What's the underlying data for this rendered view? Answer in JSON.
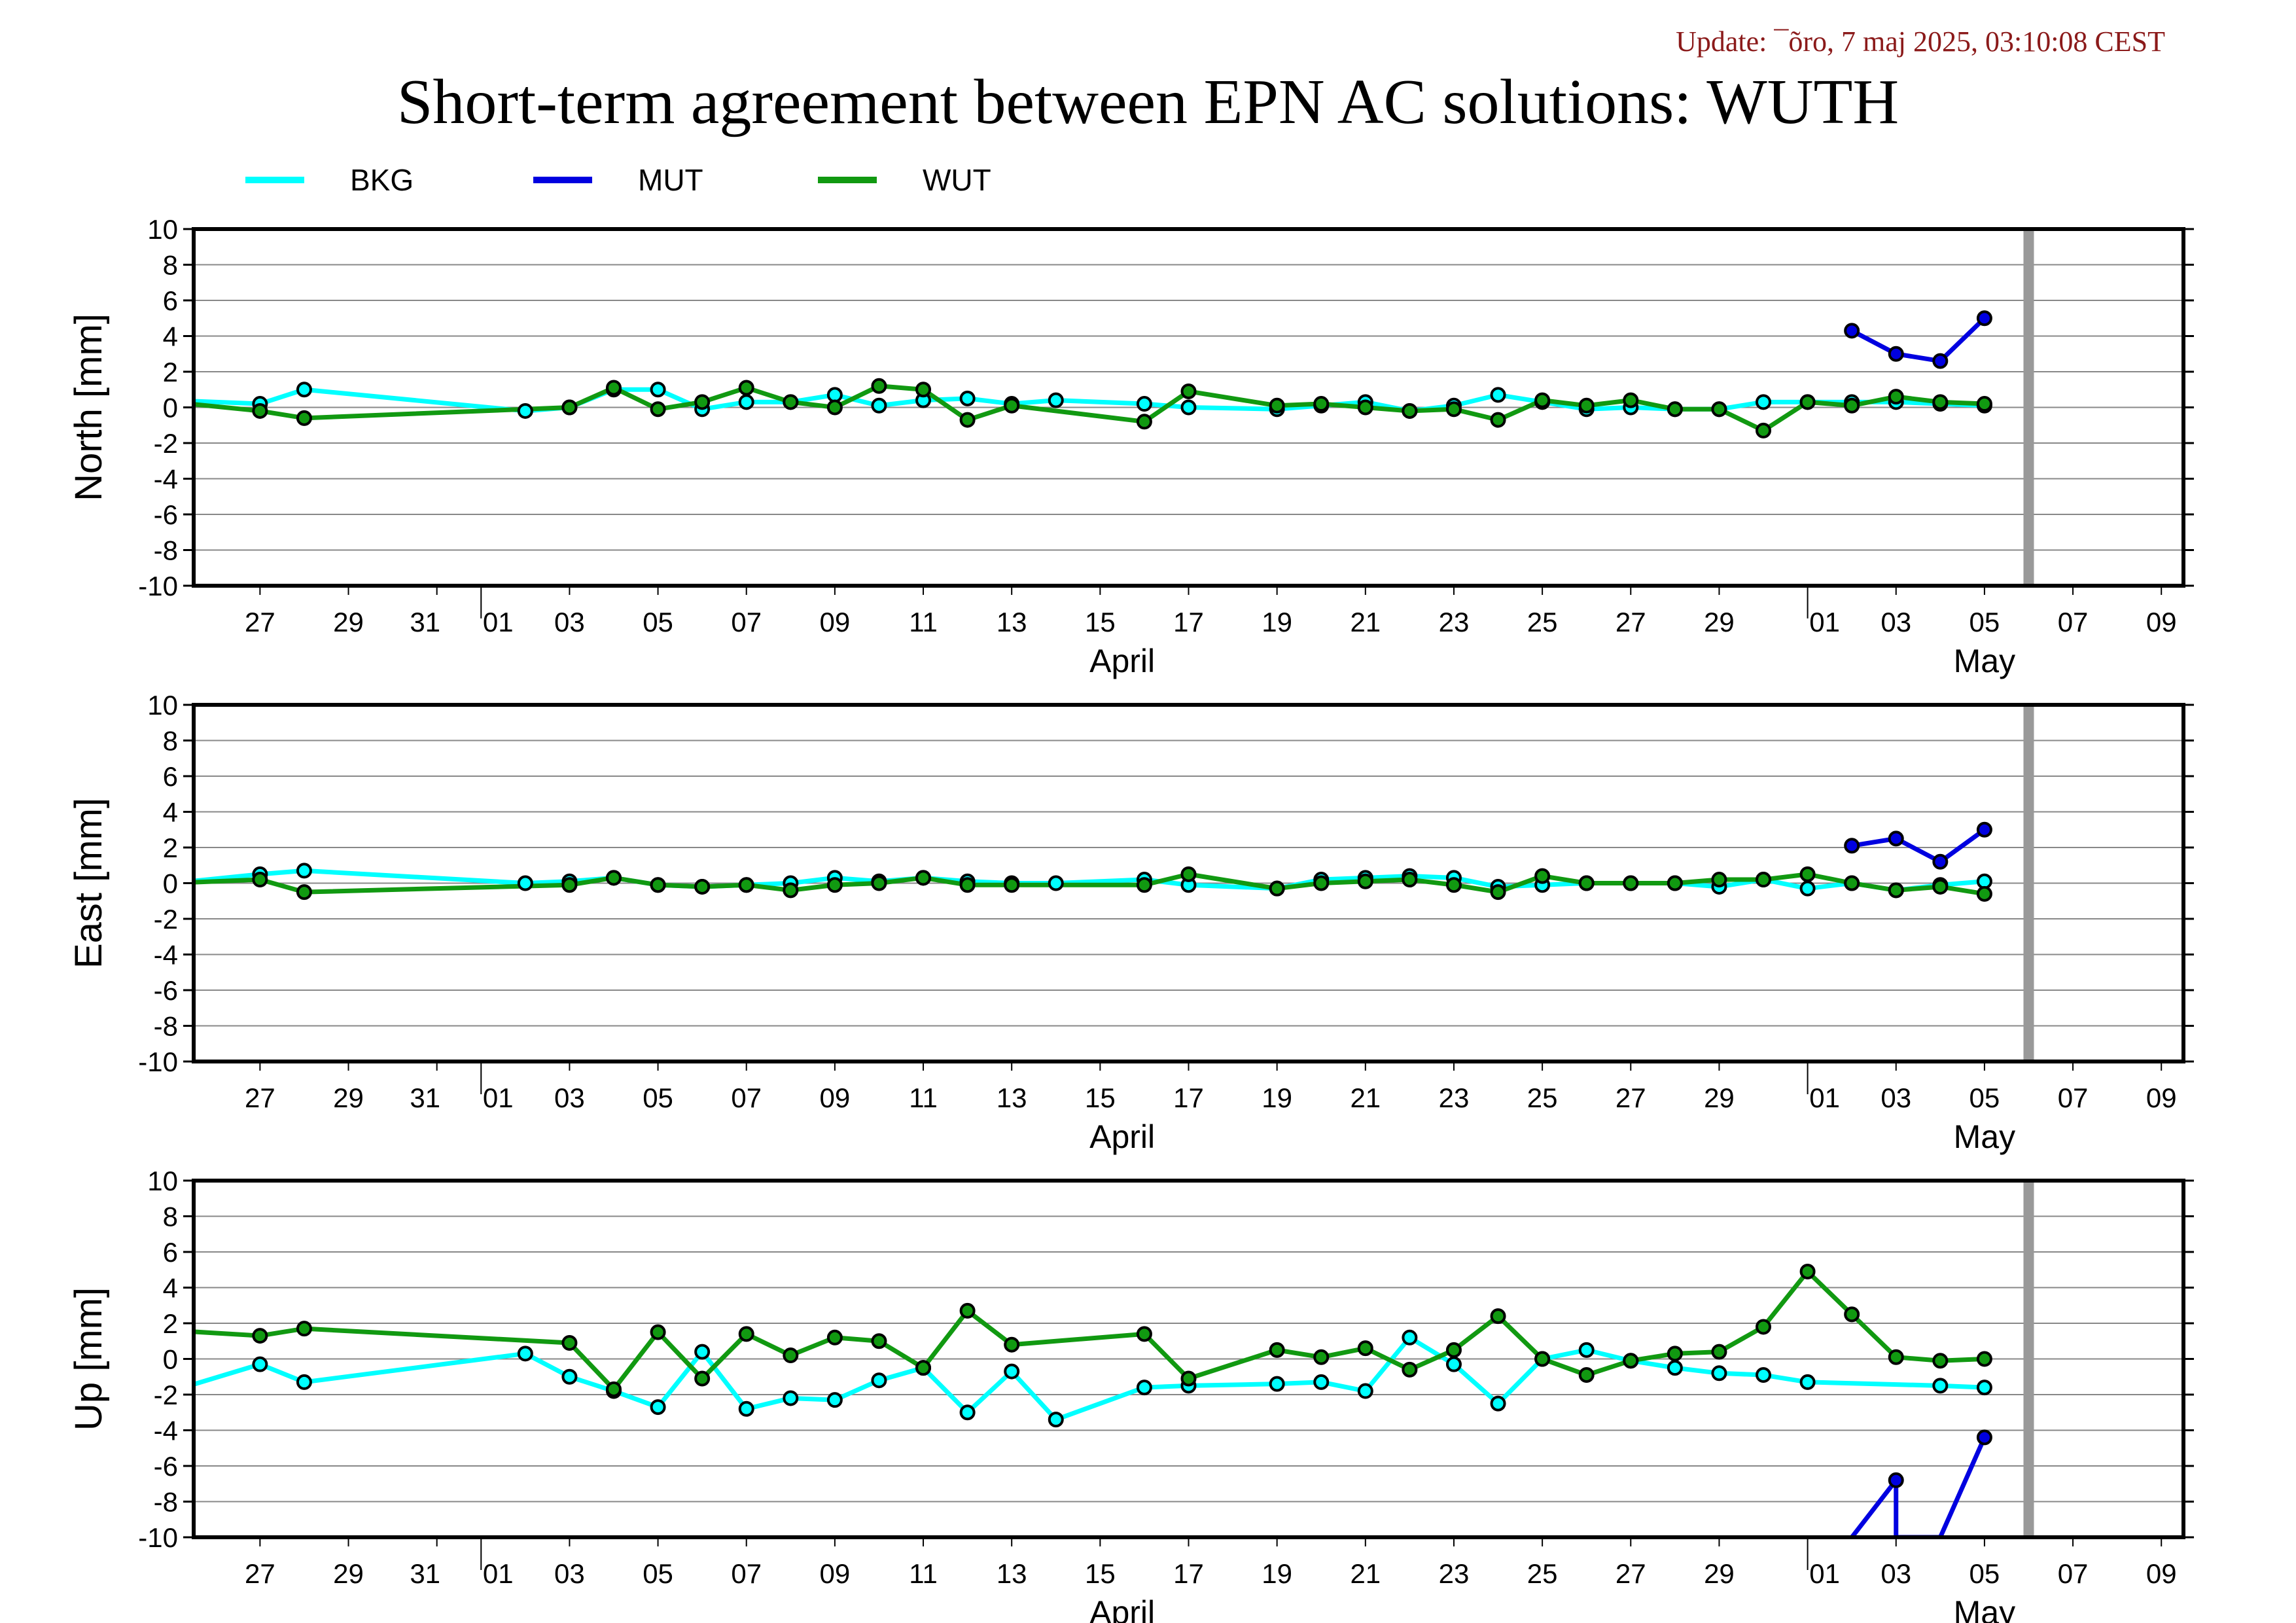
{
  "header": {
    "update": "Update: ¯õro, 7 maj 2025, 03:10:08 CEST",
    "title": "Short-term agreement between EPN AC solutions: WUTH"
  },
  "legend": [
    {
      "name": "BKG",
      "color": "#00ffff"
    },
    {
      "name": "MUT",
      "color": "#0000e0"
    },
    {
      "name": "WUT",
      "color": "#119911"
    }
  ],
  "colors": {
    "grid": "#888888",
    "marker_outline": "#000000",
    "today_line": "#999999"
  },
  "chart_data": [
    {
      "type": "line",
      "ylabel": "North [mm]",
      "ylim": [
        -10,
        10
      ],
      "yticks": [
        10,
        8,
        6,
        4,
        2,
        0,
        -2,
        -4,
        -6,
        -8,
        -10
      ],
      "xlim": [
        "2025-03-25.5",
        "2025-05-09.5"
      ],
      "xtick_labels": [
        "27",
        "29",
        "31",
        "01",
        "03",
        "05",
        "07",
        "09",
        "11",
        "13",
        "15",
        "17",
        "19",
        "21",
        "23",
        "25",
        "27",
        "29",
        "01",
        "03",
        "05",
        "07",
        "09"
      ],
      "month_labels": [
        "April",
        "May"
      ],
      "today_marker": "2025-05-06",
      "grid": true,
      "series": [
        {
          "name": "BKG",
          "x": [
            "03-25",
            "03-27",
            "03-28",
            "04-02",
            "04-03",
            "04-04",
            "04-05",
            "04-06",
            "04-07",
            "04-08",
            "04-09",
            "04-10",
            "04-11",
            "04-12",
            "04-13",
            "04-14",
            "04-16",
            "04-17",
            "04-19",
            "04-20",
            "04-21",
            "04-22",
            "04-23",
            "04-24",
            "04-25",
            "04-26",
            "04-27",
            "04-28",
            "04-29",
            "04-30",
            "05-01",
            "05-02",
            "05-03",
            "05-04",
            "05-05"
          ],
          "values": [
            0.4,
            0.2,
            1.0,
            -0.2,
            0.0,
            1.0,
            1.0,
            -0.1,
            0.3,
            0.3,
            0.7,
            0.1,
            0.4,
            0.5,
            0.2,
            0.4,
            0.2,
            0.0,
            -0.1,
            0.1,
            0.3,
            -0.2,
            0.1,
            0.7,
            0.3,
            -0.1,
            0.0,
            -0.1,
            -0.1,
            0.3,
            0.3,
            0.3,
            0.3,
            0.2,
            0.1
          ]
        },
        {
          "name": "MUT",
          "x": [
            "05-02",
            "05-03",
            "05-04",
            "05-05"
          ],
          "values": [
            4.3,
            3.0,
            2.6,
            5.0
          ]
        },
        {
          "name": "WUT",
          "x": [
            "03-25",
            "03-27",
            "03-28",
            "04-03",
            "04-04",
            "04-05",
            "04-06",
            "04-07",
            "04-08",
            "04-09",
            "04-10",
            "04-11",
            "04-12",
            "04-13",
            "04-16",
            "04-17",
            "04-19",
            "04-20",
            "04-21",
            "04-22",
            "04-23",
            "04-24",
            "04-25",
            "04-26",
            "04-27",
            "04-28",
            "04-29",
            "04-30",
            "05-01",
            "05-02",
            "05-03",
            "05-04",
            "05-05"
          ],
          "values": [
            0.3,
            -0.2,
            -0.6,
            0.0,
            1.1,
            -0.1,
            0.3,
            1.1,
            0.3,
            0.0,
            1.2,
            1.0,
            -0.7,
            0.1,
            -0.8,
            0.9,
            0.1,
            0.2,
            0.0,
            -0.2,
            -0.1,
            -0.7,
            0.4,
            0.1,
            0.4,
            -0.1,
            -0.1,
            -1.3,
            0.3,
            0.1,
            0.6,
            0.3,
            0.2
          ]
        }
      ]
    },
    {
      "type": "line",
      "ylabel": "East [mm]",
      "ylim": [
        -10,
        10
      ],
      "yticks": [
        10,
        8,
        6,
        4,
        2,
        0,
        -2,
        -4,
        -6,
        -8,
        -10
      ],
      "xlim": [
        "2025-03-25.5",
        "2025-05-09.5"
      ],
      "xtick_labels": [
        "27",
        "29",
        "31",
        "01",
        "03",
        "05",
        "07",
        "09",
        "11",
        "13",
        "15",
        "17",
        "19",
        "21",
        "23",
        "25",
        "27",
        "29",
        "01",
        "03",
        "05",
        "07",
        "09"
      ],
      "month_labels": [
        "April",
        "May"
      ],
      "today_marker": "2025-05-06",
      "grid": true,
      "series": [
        {
          "name": "BKG",
          "x": [
            "03-25",
            "03-27",
            "03-28",
            "04-02",
            "04-03",
            "04-04",
            "04-05",
            "04-06",
            "04-07",
            "04-08",
            "04-09",
            "04-10",
            "04-11",
            "04-12",
            "04-13",
            "04-14",
            "04-16",
            "04-17",
            "04-19",
            "04-20",
            "04-21",
            "04-22",
            "04-23",
            "04-24",
            "04-25",
            "04-26",
            "04-27",
            "04-28",
            "04-29",
            "04-30",
            "05-01",
            "05-02",
            "05-03",
            "05-04",
            "05-05"
          ],
          "values": [
            0.0,
            0.5,
            0.7,
            0.0,
            0.1,
            0.3,
            -0.1,
            -0.2,
            -0.1,
            0.0,
            0.3,
            0.1,
            0.3,
            0.1,
            0.0,
            0.0,
            0.2,
            -0.1,
            -0.3,
            0.2,
            0.3,
            0.4,
            0.3,
            -0.2,
            -0.1,
            0.0,
            0.0,
            0.0,
            -0.2,
            0.2,
            -0.3,
            0.0,
            -0.4,
            -0.1,
            0.1
          ]
        },
        {
          "name": "MUT",
          "x": [
            "05-02",
            "05-03",
            "05-04",
            "05-05"
          ],
          "values": [
            2.1,
            2.5,
            1.2,
            3.0
          ]
        },
        {
          "name": "WUT",
          "x": [
            "03-25",
            "03-27",
            "03-28",
            "04-03",
            "04-04",
            "04-05",
            "04-06",
            "04-07",
            "04-08",
            "04-09",
            "04-10",
            "04-11",
            "04-12",
            "04-13",
            "04-16",
            "04-17",
            "04-19",
            "04-20",
            "04-21",
            "04-22",
            "04-23",
            "04-24",
            "04-25",
            "04-26",
            "04-27",
            "04-28",
            "04-29",
            "04-30",
            "05-01",
            "05-02",
            "05-03",
            "05-04",
            "05-05"
          ],
          "values": [
            0.0,
            0.2,
            -0.5,
            -0.1,
            0.3,
            -0.1,
            -0.2,
            -0.1,
            -0.4,
            -0.1,
            0.0,
            0.3,
            -0.1,
            -0.1,
            -0.1,
            0.5,
            -0.3,
            0.0,
            0.1,
            0.2,
            -0.1,
            -0.5,
            0.4,
            0.0,
            0.0,
            0.0,
            0.2,
            0.2,
            0.5,
            0.0,
            -0.4,
            -0.2,
            -0.6
          ]
        }
      ]
    },
    {
      "type": "line",
      "ylabel": "Up [mm]",
      "ylim": [
        -10,
        10
      ],
      "yticks": [
        10,
        8,
        6,
        4,
        2,
        0,
        -2,
        -4,
        -6,
        -8,
        -10
      ],
      "xlim": [
        "2025-03-25.5",
        "2025-05-09.5"
      ],
      "xtick_labels": [
        "27",
        "29",
        "31",
        "01",
        "03",
        "05",
        "07",
        "09",
        "11",
        "13",
        "15",
        "17",
        "19",
        "21",
        "23",
        "25",
        "27",
        "29",
        "01",
        "03",
        "05",
        "07",
        "09"
      ],
      "month_labels": [
        "April",
        "May"
      ],
      "today_marker": "2025-05-06",
      "grid": true,
      "series": [
        {
          "name": "BKG",
          "x": [
            "03-25",
            "03-27",
            "03-28",
            "04-02",
            "04-03",
            "04-04",
            "04-05",
            "04-06",
            "04-07",
            "04-08",
            "04-09",
            "04-10",
            "04-11",
            "04-12",
            "04-13",
            "04-14",
            "04-16",
            "04-17",
            "04-19",
            "04-20",
            "04-21",
            "04-22",
            "04-23",
            "04-24",
            "04-25",
            "04-26",
            "04-27",
            "04-28",
            "04-29",
            "04-30",
            "05-01",
            "05-04",
            "05-05"
          ],
          "values": [
            -1.8,
            -0.3,
            -1.3,
            0.3,
            -1.0,
            -1.8,
            -2.7,
            0.4,
            -2.8,
            -2.2,
            -2.3,
            -1.2,
            -0.5,
            -3.0,
            -0.7,
            -3.4,
            -1.6,
            -1.5,
            -1.4,
            -1.3,
            -1.8,
            1.2,
            -0.3,
            -2.5,
            0.0,
            0.5,
            -0.1,
            -0.5,
            -0.8,
            -0.9,
            -1.3,
            -1.5,
            -1.6
          ]
        },
        {
          "name": "MUT",
          "x": [
            "05-02",
            "05-03",
            "05-03",
            "05-04",
            "05-05"
          ],
          "values": [
            -10.0,
            -6.8,
            -10.0,
            -10.0,
            -4.4
          ]
        },
        {
          "name": "WUT",
          "x": [
            "03-25",
            "03-27",
            "03-28",
            "04-03",
            "04-04",
            "04-05",
            "04-06",
            "04-07",
            "04-08",
            "04-09",
            "04-10",
            "04-11",
            "04-12",
            "04-13",
            "04-16",
            "04-17",
            "04-19",
            "04-20",
            "04-21",
            "04-22",
            "04-23",
            "04-24",
            "04-25",
            "04-26",
            "04-27",
            "04-28",
            "04-29",
            "04-30",
            "05-01",
            "05-02",
            "05-03",
            "05-04",
            "05-05"
          ],
          "values": [
            1.6,
            1.3,
            1.7,
            0.9,
            -1.7,
            1.5,
            -1.1,
            1.4,
            0.2,
            1.2,
            1.0,
            -0.5,
            2.7,
            0.8,
            1.4,
            -1.1,
            0.5,
            0.1,
            0.6,
            -0.6,
            0.5,
            2.4,
            0.0,
            -0.9,
            -0.1,
            0.3,
            0.4,
            1.8,
            4.9,
            2.5,
            0.1,
            -0.1,
            0.0
          ]
        }
      ]
    }
  ]
}
